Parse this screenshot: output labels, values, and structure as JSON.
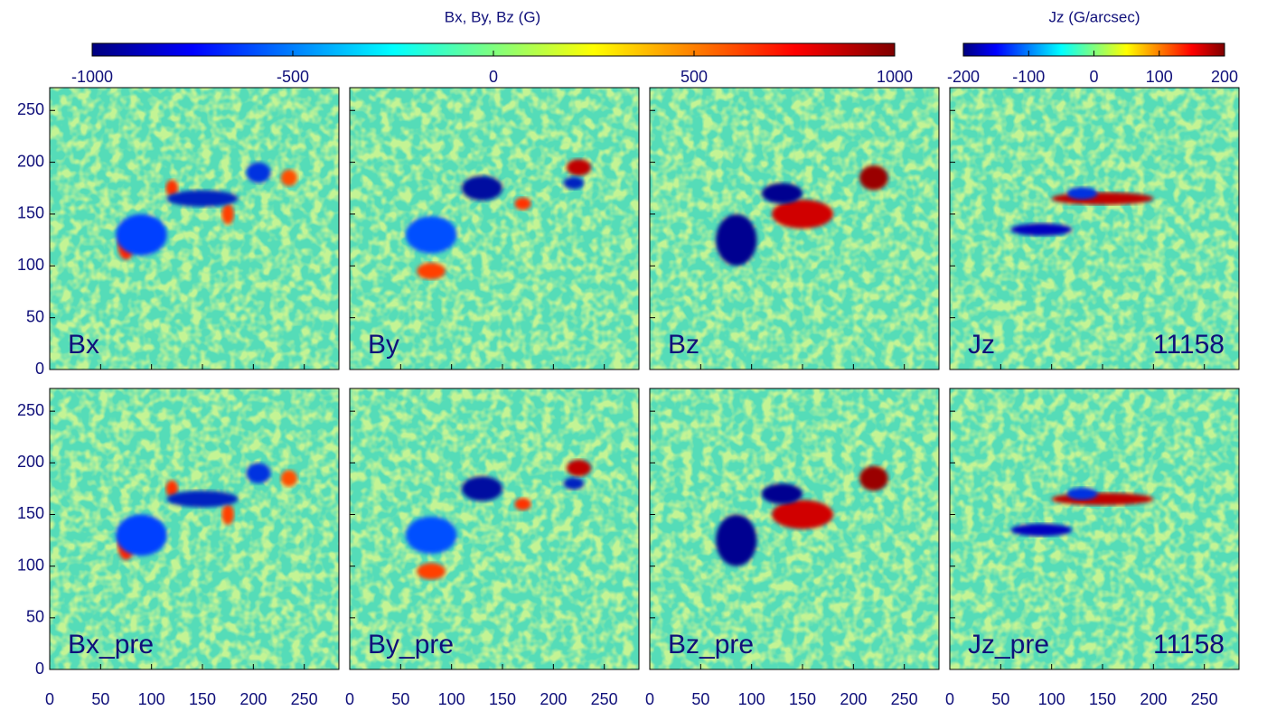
{
  "colorbars": [
    {
      "label": "Bx, By, Bz (G)",
      "lim": [
        -1000,
        1000
      ],
      "ticks": [
        -1000,
        -500,
        0,
        500,
        1000
      ],
      "colormap": "jet"
    },
    {
      "label": "Jz (G/arcsec)",
      "lim": [
        -200,
        200
      ],
      "ticks": [
        -200,
        -100,
        0,
        100,
        200
      ],
      "colormap": "jet"
    }
  ],
  "axes": {
    "xlim": [
      0,
      284
    ],
    "xticks": [
      0,
      50,
      100,
      150,
      200,
      250
    ],
    "ylim": [
      0,
      272
    ],
    "yticks": [
      0,
      50,
      100,
      150,
      200,
      250
    ]
  },
  "chart_data": [
    {
      "type": "image",
      "label": "Bx"
    },
    {
      "type": "image",
      "label": "By"
    },
    {
      "type": "image",
      "label": "Bz"
    },
    {
      "type": "image",
      "label": "Jz",
      "number": "11158"
    },
    {
      "type": "image",
      "label": "Bx_pre"
    },
    {
      "type": "image",
      "label": "By_pre"
    },
    {
      "type": "image",
      "label": "Bz_pre"
    },
    {
      "type": "image",
      "label": "Jz_pre",
      "number": "11158"
    }
  ]
}
